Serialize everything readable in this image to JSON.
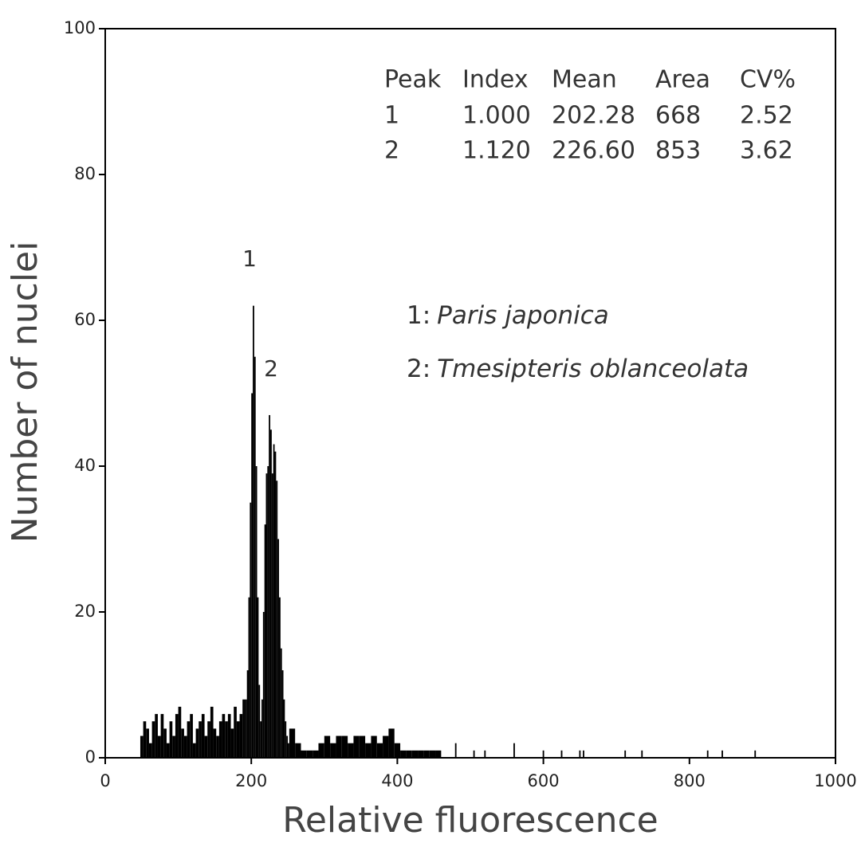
{
  "chart_data": {
    "type": "histogram",
    "xlabel": "Relative fluorescence",
    "ylabel": "Number of nuclei",
    "xlim": [
      0,
      1000
    ],
    "ylim": [
      0,
      100
    ],
    "xticks": [
      0,
      200,
      400,
      600,
      800,
      1000
    ],
    "yticks": [
      0,
      20,
      40,
      60,
      80,
      100
    ],
    "color": "#000000",
    "bins": [
      48,
      52,
      56,
      60,
      64,
      68,
      72,
      76,
      80,
      84,
      88,
      92,
      96,
      100,
      104,
      108,
      112,
      116,
      120,
      124,
      128,
      132,
      136,
      140,
      144,
      148,
      152,
      156,
      160,
      164,
      168,
      172,
      176,
      180,
      184,
      188,
      192,
      194,
      196,
      198,
      200,
      202,
      204,
      206,
      208,
      210,
      212,
      214,
      216,
      218,
      220,
      222,
      224,
      226,
      228,
      230,
      232,
      234,
      236,
      238,
      240,
      242,
      244,
      246,
      248,
      250,
      252,
      260,
      268,
      276,
      284,
      292,
      300,
      308,
      316,
      324,
      332,
      340,
      348,
      356,
      364,
      372,
      380,
      388,
      396,
      404,
      412,
      420,
      428,
      436,
      444,
      452,
      460,
      479,
      481,
      504,
      506,
      519,
      521,
      559,
      561,
      599,
      601,
      624,
      626,
      649,
      651,
      654,
      656,
      711,
      713,
      734,
      736,
      824,
      826,
      844,
      846,
      889,
      891
    ],
    "counts": [
      3,
      5,
      4,
      2,
      5,
      6,
      3,
      6,
      4,
      2,
      5,
      3,
      6,
      7,
      4,
      3,
      5,
      6,
      2,
      4,
      5,
      6,
      3,
      5,
      7,
      4,
      3,
      5,
      6,
      5,
      6,
      4,
      7,
      5,
      6,
      8,
      8,
      12,
      22,
      35,
      50,
      62,
      55,
      40,
      22,
      10,
      5,
      8,
      20,
      32,
      39,
      40,
      47,
      45,
      39,
      43,
      42,
      38,
      30,
      22,
      15,
      12,
      8,
      5,
      3,
      2,
      4,
      2,
      1,
      1,
      1,
      2,
      3,
      2,
      3,
      3,
      2,
      3,
      3,
      2,
      3,
      2,
      3,
      4,
      2,
      1,
      1,
      1,
      1,
      1,
      1,
      1,
      0,
      2,
      0,
      1,
      0,
      1,
      0,
      2,
      0,
      1,
      0,
      1,
      0,
      1,
      0,
      1,
      0,
      1,
      0,
      1,
      0,
      1,
      0,
      1,
      0,
      1
    ],
    "peak_labels": [
      "1",
      "2"
    ],
    "table": {
      "columns": [
        "Peak",
        "Index",
        "Mean",
        "Area",
        "CV%"
      ],
      "rows": [
        [
          "1",
          "1.000",
          "202.28",
          "668",
          "2.52"
        ],
        [
          "2",
          "1.120",
          "226.60",
          "853",
          "3.62"
        ]
      ]
    },
    "legend": [
      {
        "label": "1:",
        "name": "Paris japonica"
      },
      {
        "label": "2:",
        "name": "Tmesipteris oblanceolata"
      }
    ]
  }
}
